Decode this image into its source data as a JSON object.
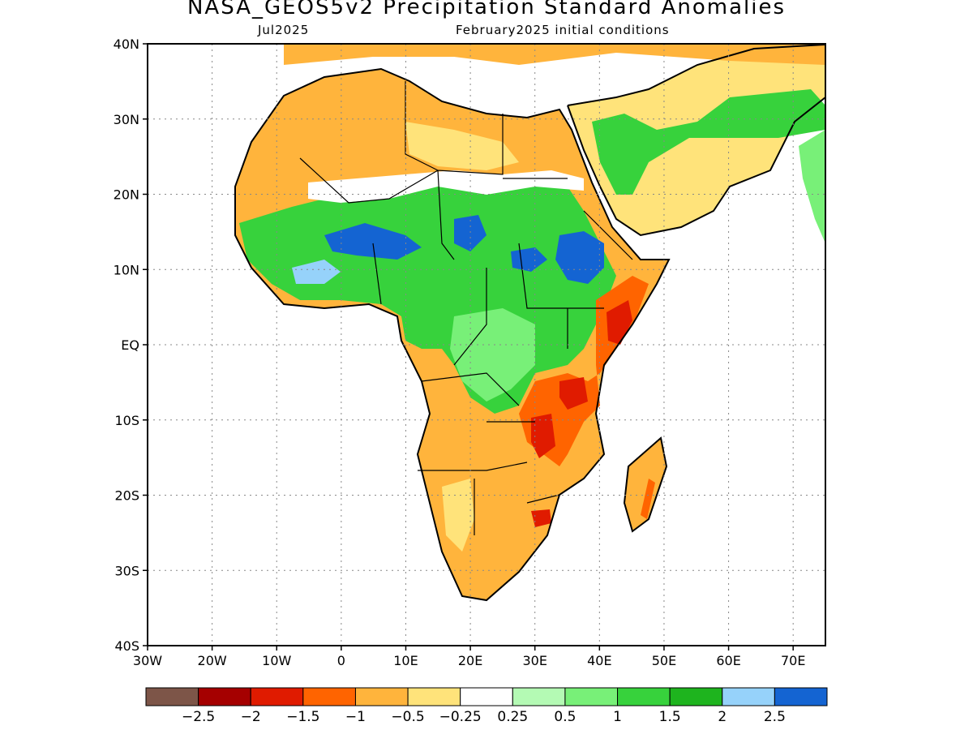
{
  "title": "NASA_GEOS5v2 Precipitation Standard Anomalies",
  "subtitle_left": "Jul2025",
  "subtitle_right": "February2025 initial conditions",
  "map": {
    "lon_range": [
      -30,
      75
    ],
    "lat_range": [
      -40,
      40
    ],
    "lat_ticks": [
      {
        "value": 40,
        "label": "40N"
      },
      {
        "value": 30,
        "label": "30N"
      },
      {
        "value": 20,
        "label": "20N"
      },
      {
        "value": 10,
        "label": "10N"
      },
      {
        "value": 0,
        "label": "EQ"
      },
      {
        "value": -10,
        "label": "10S"
      },
      {
        "value": -20,
        "label": "20S"
      },
      {
        "value": -30,
        "label": "30S"
      },
      {
        "value": -40,
        "label": "40S"
      }
    ],
    "lon_ticks": [
      {
        "value": -30,
        "label": "30W"
      },
      {
        "value": -20,
        "label": "20W"
      },
      {
        "value": -10,
        "label": "10W"
      },
      {
        "value": 0,
        "label": "0"
      },
      {
        "value": 10,
        "label": "10E"
      },
      {
        "value": 20,
        "label": "20E"
      },
      {
        "value": 30,
        "label": "30E"
      },
      {
        "value": 40,
        "label": "40E"
      },
      {
        "value": 50,
        "label": "50E"
      },
      {
        "value": 60,
        "label": "60E"
      },
      {
        "value": 70,
        "label": "70E"
      }
    ],
    "grid": "dotted"
  },
  "colorbar": {
    "colors": [
      "#7d5548",
      "#a50000",
      "#e01b00",
      "#ff6400",
      "#ffb43c",
      "#ffe37a",
      "#ffffff",
      "#b4fab4",
      "#78f078",
      "#37d23c",
      "#1eb41e",
      "#96d2fa",
      "#1464d2"
    ],
    "labels": [
      "-2.5",
      "-2",
      "-1.5",
      "-1",
      "-0.5",
      "-0.25",
      "0.25",
      "0.5",
      "1",
      "1.5",
      "2",
      "2.5"
    ]
  }
}
